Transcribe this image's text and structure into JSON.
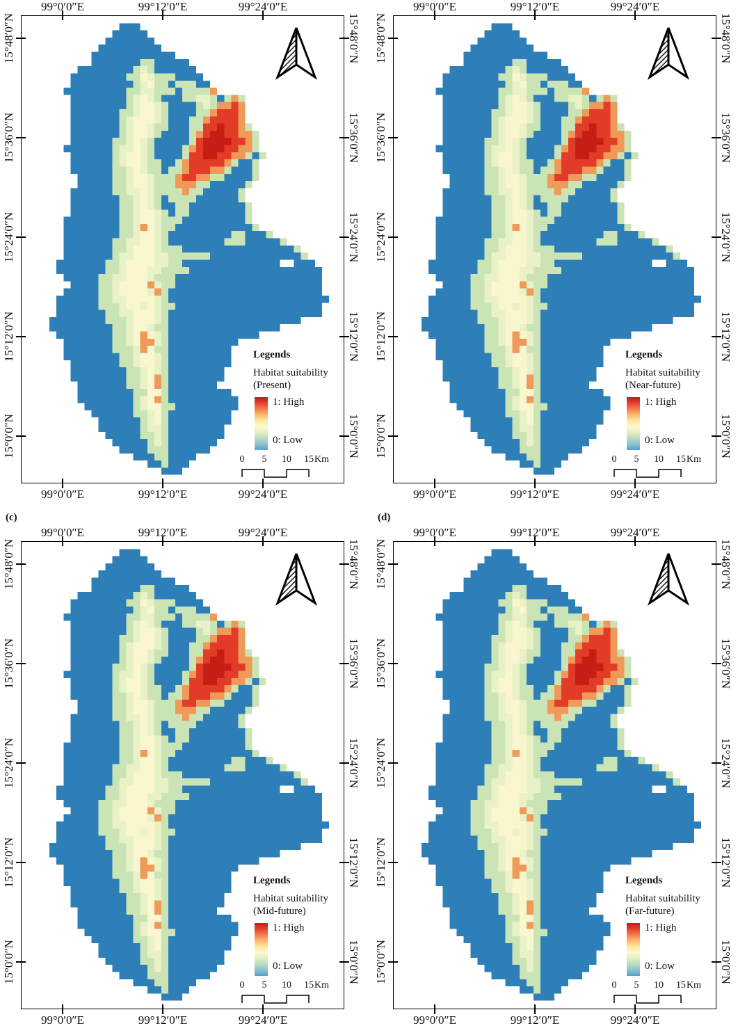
{
  "figure": {
    "panels": [
      {
        "id": "a",
        "label": "",
        "legend": {
          "heading": "Legends",
          "title": "Habitat suitability",
          "scenario": "(Present)",
          "high": "1: High",
          "low": "0: Low"
        }
      },
      {
        "id": "b",
        "label": "",
        "legend": {
          "heading": "Legends",
          "title": "Habitat suitability",
          "scenario": "(Near-future)",
          "high": "1: High",
          "low": "0: Low"
        }
      },
      {
        "id": "c",
        "label": "(c)",
        "legend": {
          "heading": "Legends",
          "title": "Habitat suitability",
          "scenario": "(Mid-future)",
          "high": "1: High",
          "low": "0: Low"
        }
      },
      {
        "id": "d",
        "label": "(d)",
        "legend": {
          "heading": "Legends",
          "title": "Habitat suitability",
          "scenario": "(Far-future)",
          "high": "1: High",
          "low": "0: Low"
        }
      }
    ],
    "axes": {
      "x_labels": [
        "99°0′0″E",
        "99°12′0″E",
        "99°24′0″E"
      ],
      "y_labels": [
        "15°48′0″N",
        "15°36′0″N",
        "15°24′0″N",
        "15°12′0″N",
        "15°0′0″N"
      ]
    },
    "scalebar": {
      "ticks": [
        "0",
        "5",
        "10",
        "15"
      ],
      "unit": "Km"
    },
    "colors": {
      "ramp": [
        "#c6171b",
        "#e2432e",
        "#f67b4d",
        "#fdb96c",
        "#fee89f",
        "#fbf9cf",
        "#e2efc2",
        "#bcdcc0",
        "#8cc3d2",
        "#57a0c8"
      ],
      "frame": "#000000"
    },
    "raster": {
      "cols": 46,
      "rows": 65,
      "palette": {
        "B": "#2e7eb8",
        "g": "#cbe4b6",
        "p": "#e9f2c6",
        "y": "#faf7d0",
        "o": "#f09a5a",
        "r": "#e23b27",
        "R": "#c81d14"
      },
      "grid": [
        "..............................................",
        "..............BBB.............................",
        ".............BBBBB............................",
        "............BBBBBBB...........................",
        "...........BBBBBBBBB..........................",
        "..........BBBBBBBBBBBB........................",
        "..........BBBBBBBggBBBBB......................",
        "........BBBBBBBBgpgBBBBBB.....................",
        ".......BBBBBBBBggypgggBBBB....................",
        ".......BBBBBBBBBgpyggBgggBB...................",
        "......BBBBBBBBBggppgggBggggo..................",
        ".......BBBBBBBBgpypgBBBggppgBgog..............",
        ".......BBBBBBBBgpyypgBBBBgpgooro..............",
        ".......BBBBBBBggpyypgBBBBggorrro..............",
        ".......BBBBBBBgpyyypgBBBggorrrro..............",
        ".......BBBBBBBgpyypggBBBggrrRrrog.............",
        ".......BBBBBBBgpyypgBBBBgorRRrroog............",
        ".......BBBBBBggpypgBBBBBgrRRRRrrog............",
        "......BBBBBBBgppypgBBBBgorRRRrroog............",
        ".......BBBBBBgpyypgBBBBgrrRRrroogBg...........",
        ".......BBBBBBgpyypggBBgorrrrrogBBg............",
        ".......BBBBBBggpypggBggorrroogBBBg............",
        "........BBBBBggpyypgggorrooggBBBBg............",
        "........BBBBBggpyypgggoooggBBBBBg.............",
        ".......BBBBBBggppypggggoggBBBBBg..............",
        ".......BBBBBBBggpypgBggggBBBBBBg..............",
        ".......BBBBBBBggpypgBBggBBBBBBBBg.............",
        ".......BBBBBBBggpyypgBggBBBBBBBBg.............",
        "......BBBBBBBBggpyypgggBBBBBBBBBg.............",
        "......BBBBBBBBggpoypggBBBBBBBBBBBg............",
        "......BBBBBBBBggpyypgBBBBBBBBBggBBBg..........",
        "......BBBBBBBggppyypgBBBBBBBBgggBBBBBg........",
        "......BBBBBBBggpyyypgggBBBBBBBBBBBBBBBBg......",
        "......BBBBBBBgppyyyppggggggBBBBBBBBBBBBBg.....",
        ".....BBBBBBBggpyyyyppggBBBBBBBBBBBBBB..BBB....",
        ".....BBBBBBBggpyyyppggggBBBBBBBBBBBBBBBBBBB...",
        "......BBBBBggppyyypgggBBBBBBBBBBBBBBBBBBBBB...",
        ".......BBBBggpyyyyopggBBBBBBBBBBBBBBBBBBBBB...",
        "......BBBBBggpyyyypogBBBBBBBBBBBBBBBBBBBBBB...",
        ".....BBBBBBggppyyyypgBBBBBBBBBBBBBBBBBBBBBBB..",
        ".....BBBBBBgggpyypypggBBBBBBBBBBBBBBBBBBBBB...",
        ".....BBBBBBBggppyyypgBBBBBBBBBBBBBBBBBBBBBB...",
        "....BBBBBBBBgggpyyypgBBBBBBBBBBBBBBBBBBB......",
        "....BBBBBBBBBggpyypggBBBBBBBBBBBBBBBB.........",
        ".....BBBBBBBBggpyoypgBBBBBBBBBBBBB............",
        "......BBBBBBBggpyoopgBBBBBBBBBB...............",
        "......BBBBBBBgggpoyggBBBBBBBBB................",
        "......BBBBBBBBggpyypgBBBBBBBBB................",
        ".......BBBBBBBggpyypgBBBBBBBBB................",
        ".......BBBBBBBBggpypgBBBBBBBB.................",
        ".......BBBBBBBBggpyogBBBBBBBB.................",
        "........BBBBBBBggpyogBBBBBBB..................",
        "........BBBBBBBBggyygBBBBBBBBB................",
        "........BBBBBBBBgpyogBBBBBBBBBB...............",
        ".........BBBBBBBgpyyggBBBBBBBBB...............",
        "..........BBBBBBggpygBBBBBBBBB................",
        "...........BBBBBBgpygBBBBBBBBB................",
        "...........BBBBBBgppgBBBBBBBB.................",
        "............BBBBBggpgBBBBBBBB.................",
        ".............BBBBBgpgBBBBBBB..................",
        "..............BBBBgggBBBBBB...................",
        "................BBBggBBBB.....................",
        "..................BBgBBB......................",
        "....................BBB.......................",
        ".............................................."
      ]
    }
  }
}
